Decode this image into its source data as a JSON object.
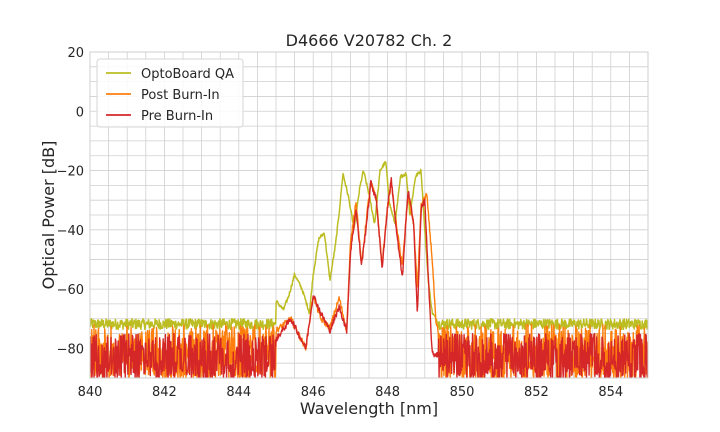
{
  "chart_data": {
    "type": "line",
    "title": "D4666 V20782 Ch. 2",
    "xlabel": "Wavelength [nm]",
    "ylabel": "Optical Power [dB]",
    "xlim": [
      840,
      855
    ],
    "ylim": [
      -90,
      20
    ],
    "x_ticks": [
      840,
      842,
      844,
      846,
      848,
      850,
      852,
      854
    ],
    "y_ticks": [
      20,
      0,
      -20,
      -40,
      -60,
      -80
    ],
    "x_minor_step": 0.5,
    "y_minor_step": 5,
    "grid": true,
    "legend_position": "top-left",
    "noise_floor_min": -90,
    "series": [
      {
        "name": "OptoBoard QA",
        "color": "#bcbd22",
        "noise_band": [
          -78,
          -70
        ],
        "x": [
          840.0,
          841.0,
          842.0,
          843.0,
          844.0,
          844.5,
          845.0,
          845.2,
          845.35,
          845.5,
          845.7,
          845.9,
          846.0,
          846.15,
          846.3,
          846.45,
          846.6,
          846.7,
          846.8,
          846.95,
          847.1,
          847.25,
          847.35,
          847.5,
          847.65,
          847.8,
          847.95,
          848.05,
          848.2,
          848.35,
          848.5,
          848.6,
          848.75,
          848.9,
          849.0,
          849.1,
          849.2,
          849.4,
          850.0,
          851.0,
          852.0,
          853.0,
          854.0,
          855.0
        ],
        "y": [
          -72,
          -73,
          -72,
          -72,
          -70,
          -70,
          -64,
          -67,
          -62,
          -55,
          -60,
          -68,
          -55,
          -43,
          -41,
          -57,
          -45,
          -34,
          -21,
          -29,
          -40,
          -26,
          -20,
          -28,
          -38,
          -20,
          -17,
          -31,
          -38,
          -22,
          -21,
          -35,
          -22,
          -20,
          -40,
          -58,
          -68,
          -72,
          -73,
          -72,
          -73,
          -73,
          -72,
          -72
        ]
      },
      {
        "name": "Post Burn-In",
        "color": "#ff7f0e",
        "noise_band": [
          -90,
          -72
        ],
        "x": [
          840.0,
          841.0,
          842.0,
          843.0,
          844.0,
          845.0,
          845.4,
          845.8,
          846.0,
          846.2,
          846.45,
          846.7,
          846.9,
          847.0,
          847.15,
          847.3,
          847.45,
          847.55,
          847.7,
          847.85,
          848.0,
          848.1,
          848.25,
          848.4,
          848.55,
          848.7,
          848.8,
          848.9,
          849.05,
          849.2,
          849.3,
          849.5,
          850.0,
          851.0,
          852.0,
          853.0,
          854.0,
          855.0
        ],
        "y": [
          -80,
          -80,
          -79,
          -80,
          -79,
          -74,
          -70,
          -80,
          -62,
          -70,
          -73,
          -63,
          -74,
          -45,
          -30,
          -52,
          -34,
          -24,
          -30,
          -52,
          -32,
          -24,
          -40,
          -52,
          -28,
          -38,
          -60,
          -32,
          -28,
          -50,
          -72,
          -78,
          -78,
          -77,
          -78,
          -78,
          -77,
          -78
        ]
      },
      {
        "name": "Pre Burn-In",
        "color": "#d62728",
        "noise_band": [
          -90,
          -75
        ],
        "x": [
          840.0,
          841.0,
          842.0,
          843.0,
          844.0,
          845.0,
          845.4,
          845.8,
          846.0,
          846.2,
          846.45,
          846.7,
          846.9,
          847.0,
          847.15,
          847.3,
          847.45,
          847.55,
          847.7,
          847.85,
          848.0,
          848.1,
          848.25,
          848.4,
          848.55,
          848.7,
          848.8,
          848.9,
          849.0,
          849.1,
          849.2,
          849.5,
          850.0,
          851.0,
          852.0,
          853.0,
          854.0,
          855.0
        ],
        "y": [
          -82,
          -82,
          -82,
          -82,
          -82,
          -77,
          -70,
          -80,
          -62,
          -68,
          -74,
          -66,
          -74,
          -48,
          -33,
          -52,
          -36,
          -24,
          -30,
          -53,
          -32,
          -23,
          -42,
          -56,
          -26,
          -38,
          -69,
          -33,
          -30,
          -58,
          -82,
          -82,
          -82,
          -82,
          -82,
          -82,
          -82,
          -82
        ]
      }
    ]
  }
}
